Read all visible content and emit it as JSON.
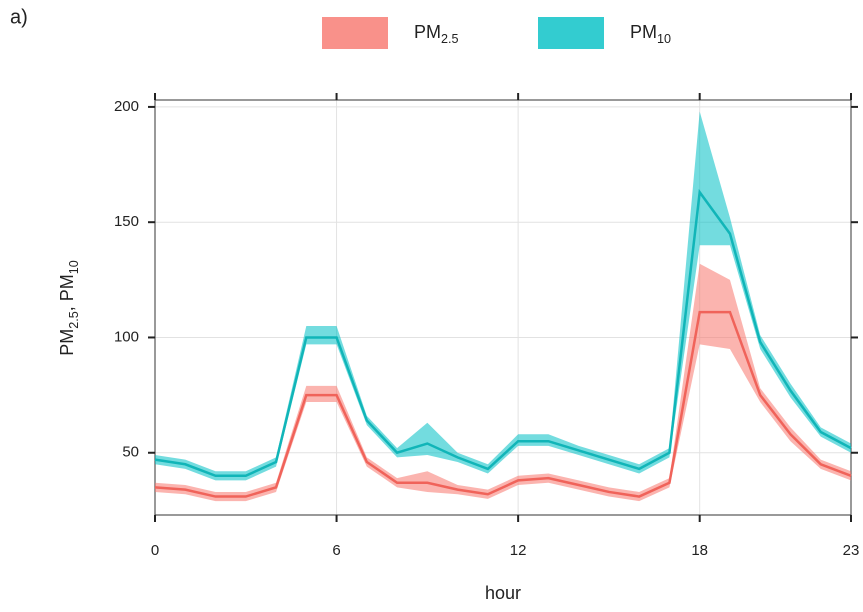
{
  "chart_data": {
    "type": "line",
    "panel_label": "a)",
    "xlabel": "hour",
    "ylabel": "PM2.5, PM10",
    "x": [
      0,
      1,
      2,
      3,
      4,
      5,
      6,
      7,
      8,
      9,
      10,
      11,
      12,
      13,
      14,
      15,
      16,
      17,
      18,
      19,
      20,
      21,
      22,
      23
    ],
    "series": [
      {
        "name": "PM2.5",
        "color": "#f0635a",
        "band_color": "#f8766d",
        "values": [
          35,
          34,
          31,
          31,
          35,
          75,
          75,
          46,
          37,
          37,
          34,
          32,
          38,
          39,
          36,
          33,
          31,
          37,
          111,
          111,
          75,
          58,
          45,
          40
        ],
        "lower": [
          33,
          32,
          29,
          29,
          33,
          72,
          72,
          44,
          35,
          33,
          32,
          30,
          36,
          37,
          34,
          31,
          29,
          35,
          97,
          95,
          72,
          55,
          43,
          38
        ],
        "upper": [
          37,
          36,
          33,
          33,
          37,
          79,
          79,
          48,
          39,
          42,
          36,
          34,
          40,
          41,
          38,
          35,
          33,
          39,
          132,
          125,
          78,
          61,
          47,
          42
        ]
      },
      {
        "name": "PM10",
        "color": "#11b5b8",
        "band_color": "#00bfc4",
        "values": [
          47,
          45,
          40,
          40,
          46,
          100,
          100,
          64,
          50,
          54,
          48,
          43,
          55,
          55,
          51,
          47,
          43,
          50,
          163,
          145,
          98,
          77,
          59,
          52
        ],
        "lower": [
          45,
          43,
          38,
          38,
          44,
          97,
          97,
          62,
          48,
          49,
          46,
          41,
          53,
          53,
          49,
          45,
          41,
          48,
          140,
          140,
          95,
          74,
          57,
          50
        ],
        "upper": [
          49,
          47,
          42,
          42,
          48,
          105,
          105,
          66,
          52,
          63,
          50,
          45,
          58,
          58,
          53,
          49,
          45,
          52,
          198,
          152,
          101,
          80,
          61,
          54
        ]
      }
    ],
    "xlim": [
      0,
      23
    ],
    "xticks": [
      0,
      6,
      12,
      18,
      23
    ],
    "ylim": [
      23,
      203
    ],
    "yticks": [
      50,
      100,
      150,
      200
    ],
    "grid": true,
    "legend": "top"
  }
}
